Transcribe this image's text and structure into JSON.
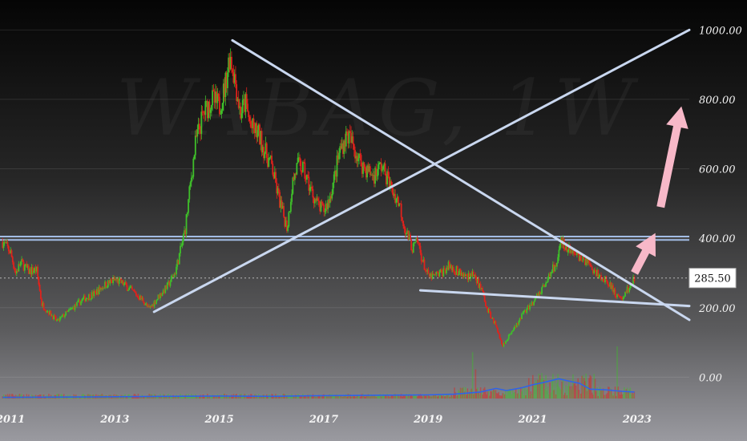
{
  "chart_data": {
    "type": "candlestick",
    "watermark": "WABAG, 1W",
    "x_ticks": [
      "2011",
      "2013",
      "2015",
      "2017",
      "2019",
      "2021",
      "2023"
    ],
    "y_ticks": [
      "1000.00",
      "800.00",
      "600.00",
      "400.00",
      "200.00",
      "0.00"
    ],
    "ylim": [
      -80,
      1040
    ],
    "xlim": [
      2010.8,
      2024.0
    ],
    "last_price": "285.50",
    "last_price_value": 285.5,
    "price_path": [
      [
        2010.85,
        390
      ],
      [
        2011.0,
        360
      ],
      [
        2011.1,
        300
      ],
      [
        2011.2,
        330
      ],
      [
        2011.35,
        305
      ],
      [
        2011.5,
        310
      ],
      [
        2011.6,
        210
      ],
      [
        2011.75,
        185
      ],
      [
        2011.9,
        160
      ],
      [
        2012.0,
        175
      ],
      [
        2012.2,
        200
      ],
      [
        2012.4,
        225
      ],
      [
        2012.6,
        240
      ],
      [
        2012.8,
        265
      ],
      [
        2013.0,
        280
      ],
      [
        2013.15,
        270
      ],
      [
        2013.35,
        245
      ],
      [
        2013.55,
        220
      ],
      [
        2013.65,
        195
      ],
      [
        2013.85,
        235
      ],
      [
        2014.0,
        260
      ],
      [
        2014.15,
        300
      ],
      [
        2014.25,
        360
      ],
      [
        2014.35,
        430
      ],
      [
        2014.45,
        560
      ],
      [
        2014.55,
        680
      ],
      [
        2014.7,
        760
      ],
      [
        2014.85,
        800
      ],
      [
        2015.0,
        780
      ],
      [
        2015.1,
        830
      ],
      [
        2015.2,
        930
      ],
      [
        2015.3,
        860
      ],
      [
        2015.4,
        760
      ],
      [
        2015.5,
        790
      ],
      [
        2015.6,
        720
      ],
      [
        2015.75,
        700
      ],
      [
        2015.9,
        640
      ],
      [
        2016.0,
        610
      ],
      [
        2016.1,
        540
      ],
      [
        2016.2,
        480
      ],
      [
        2016.3,
        430
      ],
      [
        2016.4,
        560
      ],
      [
        2016.5,
        610
      ],
      [
        2016.6,
        600
      ],
      [
        2016.75,
        540
      ],
      [
        2016.9,
        490
      ],
      [
        2017.0,
        480
      ],
      [
        2017.1,
        510
      ],
      [
        2017.2,
        570
      ],
      [
        2017.3,
        650
      ],
      [
        2017.45,
        700
      ],
      [
        2017.55,
        670
      ],
      [
        2017.7,
        620
      ],
      [
        2017.8,
        600
      ],
      [
        2017.95,
        580
      ],
      [
        2018.1,
        610
      ],
      [
        2018.2,
        580
      ],
      [
        2018.3,
        540
      ],
      [
        2018.45,
        500
      ],
      [
        2018.55,
        430
      ],
      [
        2018.7,
        370
      ],
      [
        2018.8,
        390
      ],
      [
        2018.9,
        330
      ],
      [
        2019.0,
        290
      ],
      [
        2019.1,
        290
      ],
      [
        2019.25,
        300
      ],
      [
        2019.4,
        320
      ],
      [
        2019.55,
        305
      ],
      [
        2019.7,
        290
      ],
      [
        2019.85,
        300
      ],
      [
        2020.0,
        260
      ],
      [
        2020.15,
        190
      ],
      [
        2020.3,
        150
      ],
      [
        2020.42,
        90
      ],
      [
        2020.55,
        120
      ],
      [
        2020.7,
        150
      ],
      [
        2020.85,
        190
      ],
      [
        2021.0,
        215
      ],
      [
        2021.1,
        240
      ],
      [
        2021.2,
        260
      ],
      [
        2021.35,
        300
      ],
      [
        2021.45,
        330
      ],
      [
        2021.55,
        390
      ],
      [
        2021.65,
        375
      ],
      [
        2021.75,
        355
      ],
      [
        2021.9,
        345
      ],
      [
        2022.05,
        330
      ],
      [
        2022.2,
        305
      ],
      [
        2022.35,
        285
      ],
      [
        2022.5,
        265
      ],
      [
        2022.6,
        230
      ],
      [
        2022.75,
        235
      ],
      [
        2022.85,
        260
      ],
      [
        2022.95,
        285.5
      ]
    ],
    "volume_line": [
      [
        2010.85,
        3
      ],
      [
        2012.0,
        4
      ],
      [
        2013.0,
        5
      ],
      [
        2014.0,
        6
      ],
      [
        2015.0,
        7
      ],
      [
        2016.0,
        6
      ],
      [
        2017.0,
        8
      ],
      [
        2018.0,
        9
      ],
      [
        2019.0,
        10
      ],
      [
        2019.5,
        12
      ],
      [
        2020.0,
        18
      ],
      [
        2020.3,
        28
      ],
      [
        2020.5,
        22
      ],
      [
        2020.8,
        30
      ],
      [
        2021.0,
        38
      ],
      [
        2021.2,
        44
      ],
      [
        2021.5,
        55
      ],
      [
        2021.7,
        48
      ],
      [
        2021.9,
        42
      ],
      [
        2022.1,
        26
      ],
      [
        2022.4,
        24
      ],
      [
        2022.7,
        20
      ],
      [
        2022.95,
        18
      ]
    ],
    "trendlines": [
      {
        "from": [
          2015.25,
          970
        ],
        "to": [
          2024.0,
          165
        ]
      },
      {
        "from": [
          2013.75,
          188
        ],
        "to": [
          2024.0,
          1000
        ]
      },
      {
        "from": [
          2018.85,
          250
        ],
        "to": [
          2024.0,
          205
        ]
      }
    ],
    "horizontal_levels": [
      405,
      395
    ],
    "projection_arrows": [
      {
        "from": [
          2022.95,
          300
        ],
        "to": [
          2023.35,
          415
        ]
      },
      {
        "from": [
          2023.45,
          490
        ],
        "to": [
          2023.85,
          780
        ]
      }
    ],
    "colors": {
      "up": "#3fbf2a",
      "down": "#e0221c",
      "trendline": "#c9d7ef",
      "level": "#a9c4ee",
      "volume_line": "#2f63e8",
      "arrow": "#f7b8c8"
    }
  }
}
